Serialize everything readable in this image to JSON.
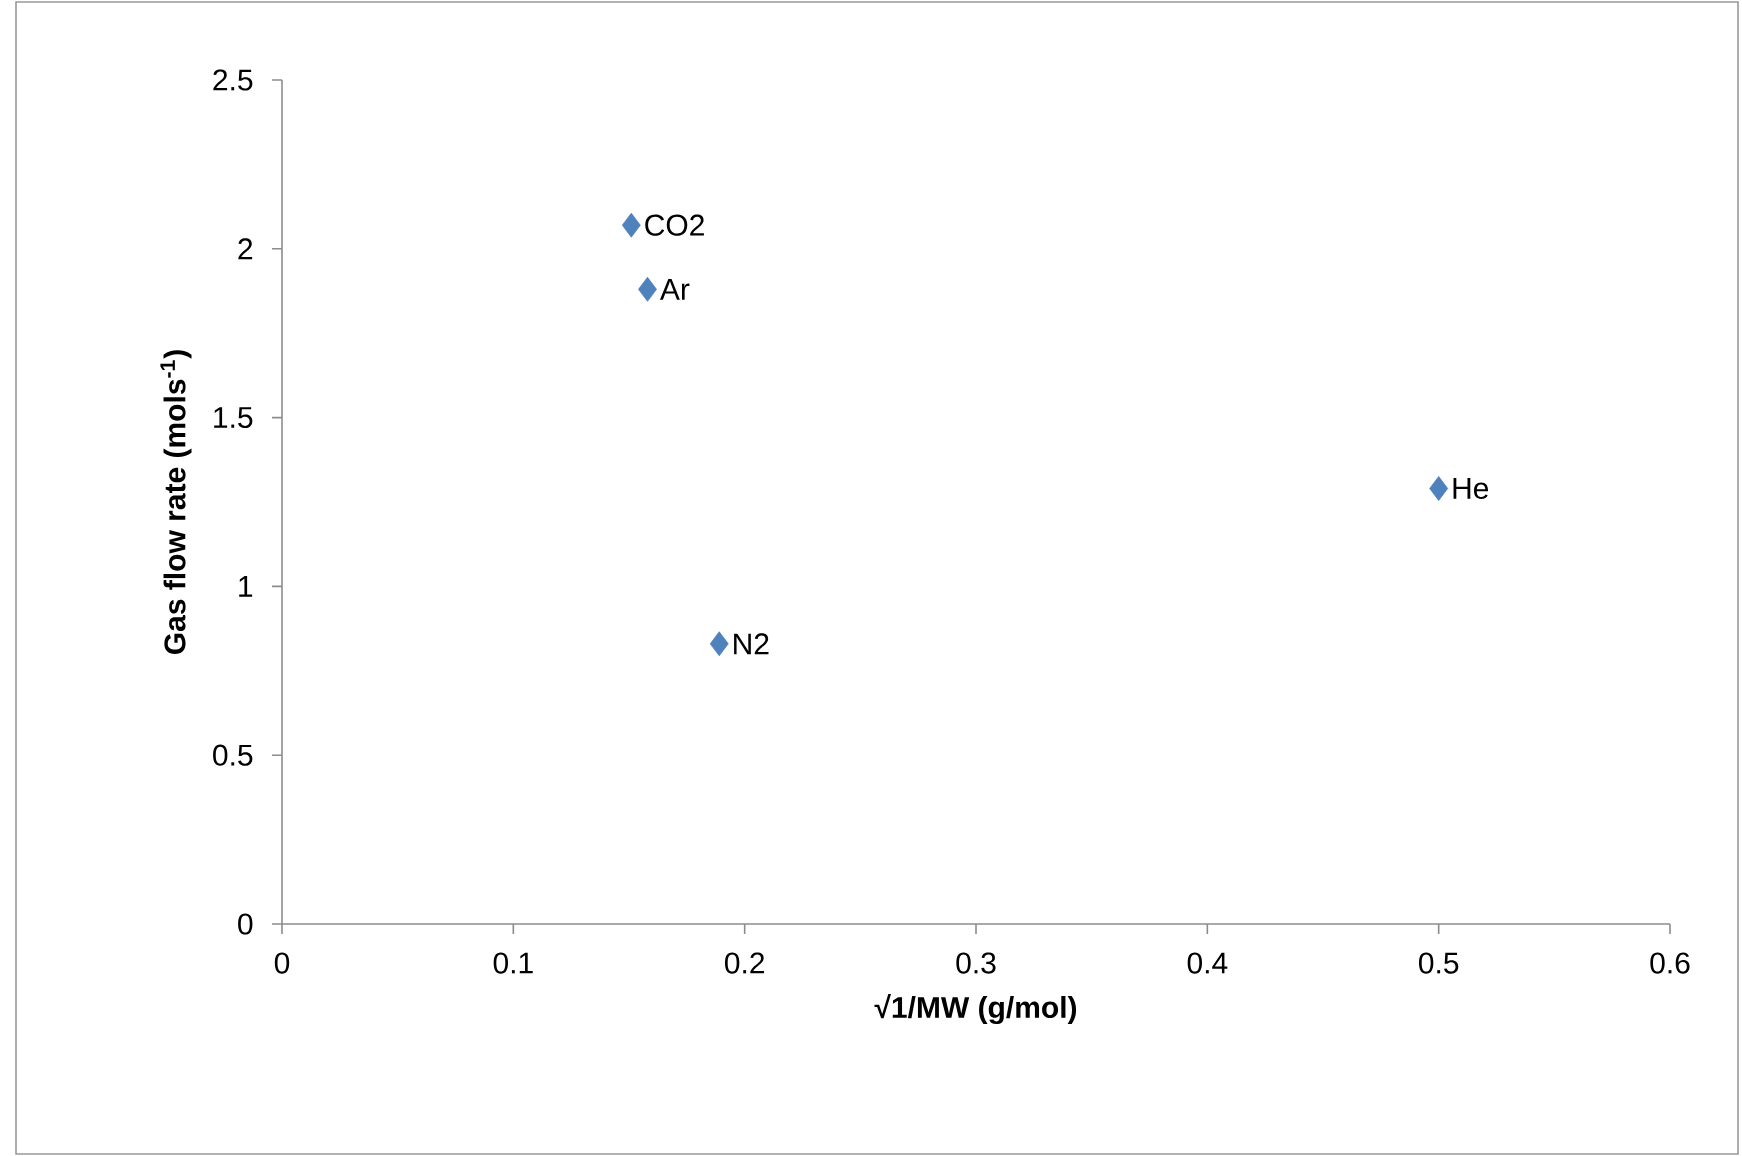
{
  "chart_data": {
    "type": "scatter",
    "xlabel": "√1/MW (g/mol)",
    "ylabel": "Gas flow rate (mols$^{-1}$)",
    "x": [
      0.151,
      0.158,
      0.189,
      0.5
    ],
    "values": [
      2.07,
      1.88,
      0.83,
      1.29
    ],
    "color": "#4f81bd",
    "marker": "diamond",
    "xlim": [
      0,
      0.6
    ],
    "xticks": [
      0,
      0.1,
      0.2,
      0.3,
      0.4,
      0.5,
      0.6
    ],
    "ylim": [
      0,
      2.5
    ],
    "yticks": [
      0,
      0.5,
      1,
      1.5,
      2,
      2.5
    ],
    "annotations": [
      {
        "text": "CO2",
        "x": 0.151,
        "y": 2.07
      },
      {
        "text": "Ar",
        "x": 0.158,
        "y": 1.88
      },
      {
        "text": "N2",
        "x": 0.189,
        "y": 0.83
      },
      {
        "text": "He",
        "x": 0.5,
        "y": 1.29
      }
    ]
  }
}
